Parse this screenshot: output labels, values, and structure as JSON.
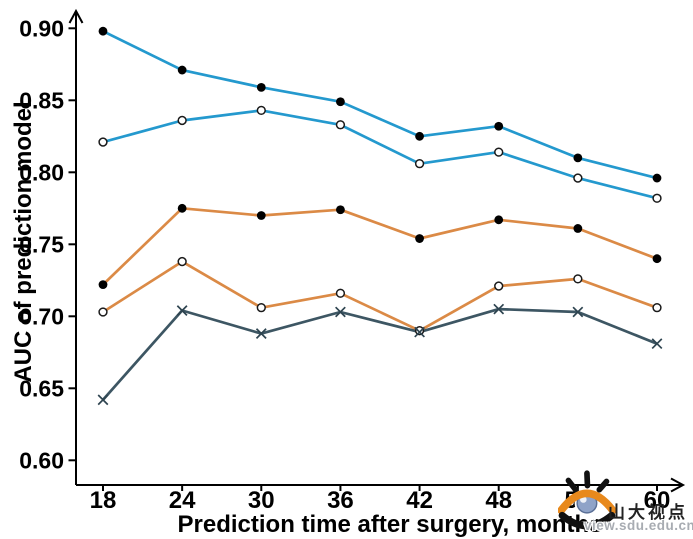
{
  "chart_data": {
    "type": "line",
    "title": "",
    "xlabel": "Prediction time after surgery, months",
    "ylabel": "AUC of prediction model",
    "x": [
      18,
      24,
      30,
      36,
      42,
      48,
      54,
      60
    ],
    "x_tick_labels": [
      "18",
      "24",
      "30",
      "36",
      "42",
      "48",
      "54",
      "60"
    ],
    "y_tick_labels": [
      "0.90",
      "0.85",
      "0.80",
      "0.75",
      "0.70",
      "0.65",
      "0.60"
    ],
    "y_tick_values": [
      0.9,
      0.85,
      0.8,
      0.75,
      0.7,
      0.65,
      0.6
    ],
    "ylim": [
      0.6,
      0.9
    ],
    "grid": false,
    "legend": "none",
    "axis_color": "#000000",
    "axis_arrows": true,
    "series": [
      {
        "name": "blue-filled-circle",
        "line_color": "#2499CE",
        "marker": "filled-circle",
        "marker_color": "#000000",
        "values": [
          0.898,
          0.871,
          0.859,
          0.849,
          0.825,
          0.832,
          0.81,
          0.796
        ]
      },
      {
        "name": "blue-open-circle",
        "line_color": "#2499CE",
        "marker": "open-circle",
        "marker_color": "#1a1a1a",
        "values": [
          0.821,
          0.836,
          0.843,
          0.833,
          0.806,
          0.814,
          0.796,
          0.782
        ]
      },
      {
        "name": "orange-filled-circle",
        "line_color": "#DB8A46",
        "marker": "filled-circle",
        "marker_color": "#000000",
        "values": [
          0.722,
          0.775,
          0.77,
          0.774,
          0.754,
          0.767,
          0.761,
          0.74
        ]
      },
      {
        "name": "orange-open-circle",
        "line_color": "#DB8A46",
        "marker": "open-circle",
        "marker_color": "#1a1a1a",
        "values": [
          0.703,
          0.738,
          0.706,
          0.716,
          0.69,
          0.721,
          0.726,
          0.706
        ]
      },
      {
        "name": "dark-x-marker",
        "line_color": "#3D5663",
        "marker": "x",
        "marker_color": "#2E4450",
        "values": [
          0.642,
          0.704,
          0.688,
          0.703,
          0.689,
          0.705,
          0.703,
          0.681
        ]
      }
    ]
  },
  "watermark": {
    "site_name": "山大视点",
    "site_url": "view.sdu.edu.cn",
    "logo": "eye-icon",
    "logo_colors": {
      "lid": "#E8891C",
      "iris": "#8FA3C8",
      "lash": "#111111"
    }
  }
}
